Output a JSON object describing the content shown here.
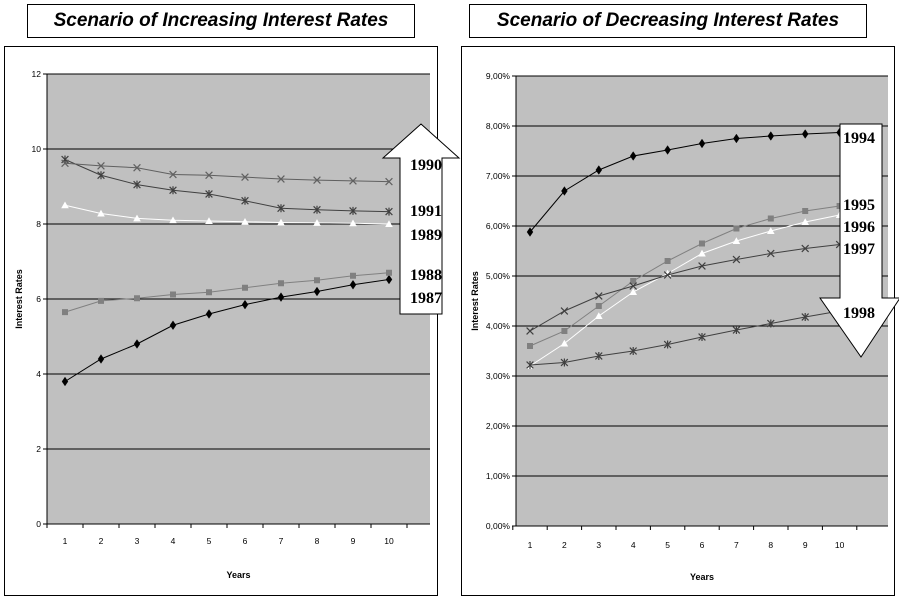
{
  "chart_data": [
    {
      "type": "line",
      "title": "Scenario of Increasing Interest Rates",
      "xlabel": "Years",
      "ylabel": "Interest Rates",
      "x": [
        1,
        2,
        3,
        4,
        5,
        6,
        7,
        8,
        9,
        10
      ],
      "ylim": [
        0,
        12
      ],
      "yticks": [
        0,
        2,
        4,
        6,
        8,
        10,
        12
      ],
      "ytick_labels": [
        "0",
        "2",
        "4",
        "6",
        "8",
        "10",
        "12"
      ],
      "grid": true,
      "plot_bg": "#c0c0c0",
      "arrow": "up",
      "series": [
        {
          "name": "1987",
          "color": "#000000",
          "marker": "diamond",
          "values": [
            3.8,
            4.4,
            4.8,
            5.3,
            5.6,
            5.85,
            6.05,
            6.2,
            6.38,
            6.52
          ]
        },
        {
          "name": "1988",
          "color": "#808080",
          "marker": "square",
          "values": [
            5.65,
            5.95,
            6.02,
            6.12,
            6.18,
            6.3,
            6.42,
            6.5,
            6.62,
            6.7
          ]
        },
        {
          "name": "1989",
          "color": "#ffffff",
          "marker": "triangle",
          "values": [
            8.5,
            8.28,
            8.15,
            8.1,
            8.08,
            8.06,
            8.04,
            8.03,
            8.02,
            8.0
          ]
        },
        {
          "name": "1991",
          "color": "#404040",
          "marker": "star",
          "values": [
            9.72,
            9.3,
            9.05,
            8.9,
            8.8,
            8.62,
            8.42,
            8.38,
            8.35,
            8.33
          ]
        },
        {
          "name": "1990",
          "color": "#606060",
          "marker": "x",
          "values": [
            9.62,
            9.55,
            9.5,
            9.32,
            9.3,
            9.25,
            9.2,
            9.17,
            9.15,
            9.13
          ]
        }
      ]
    },
    {
      "type": "line",
      "title": "Scenario of Decreasing Interest Rates",
      "xlabel": "Years",
      "ylabel": "Interest Rates",
      "x": [
        1,
        2,
        3,
        4,
        5,
        6,
        7,
        8,
        9,
        10
      ],
      "ylim": [
        0,
        9
      ],
      "yticks": [
        0,
        1,
        2,
        3,
        4,
        5,
        6,
        7,
        8,
        9
      ],
      "ytick_labels": [
        "0,00%",
        "1,00%",
        "2,00%",
        "3,00%",
        "4,00%",
        "5,00%",
        "6,00%",
        "7,00%",
        "8,00%",
        "9,00%"
      ],
      "grid": true,
      "plot_bg": "#c0c0c0",
      "arrow": "down",
      "series": [
        {
          "name": "1994",
          "color": "#000000",
          "marker": "diamond",
          "values": [
            5.88,
            6.7,
            7.12,
            7.4,
            7.52,
            7.65,
            7.75,
            7.8,
            7.84,
            7.87
          ]
        },
        {
          "name": "1995",
          "color": "#808080",
          "marker": "square",
          "values": [
            3.6,
            3.9,
            4.4,
            4.9,
            5.3,
            5.65,
            5.95,
            6.15,
            6.3,
            6.4
          ]
        },
        {
          "name": "1996",
          "color": "#ffffff",
          "marker": "triangle",
          "values": [
            3.2,
            3.65,
            4.2,
            4.68,
            5.05,
            5.45,
            5.7,
            5.9,
            6.08,
            6.22
          ]
        },
        {
          "name": "1997",
          "color": "#404040",
          "marker": "x",
          "values": [
            3.9,
            4.3,
            4.6,
            4.8,
            5.02,
            5.2,
            5.33,
            5.45,
            5.55,
            5.63
          ]
        },
        {
          "name": "1998",
          "color": "#404040",
          "marker": "star",
          "values": [
            3.22,
            3.27,
            3.4,
            3.5,
            3.63,
            3.78,
            3.92,
            4.05,
            4.18,
            4.3
          ]
        }
      ]
    }
  ]
}
